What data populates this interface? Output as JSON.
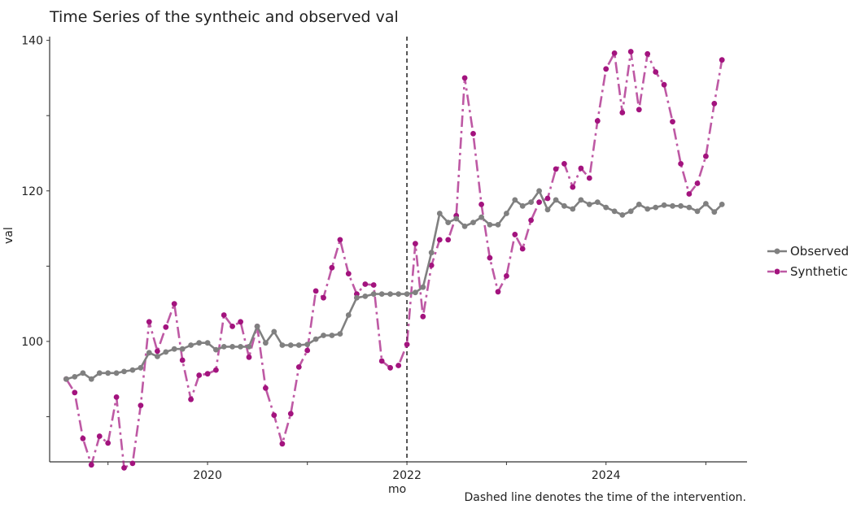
{
  "title": "Time Series of the syntheic and observed val",
  "caption": "Dashed line denotes the time of the intervention.",
  "chart_data": {
    "type": "line",
    "xlabel": "mo",
    "ylabel": "val",
    "xlim": [
      "2018-06-01",
      "2025-06-01"
    ],
    "ylim": [
      84,
      140.5
    ],
    "x_ticks": [
      {
        "label": "2020",
        "date": "2020-01-01"
      },
      {
        "label": "2022",
        "date": "2022-01-01"
      },
      {
        "label": "2024",
        "date": "2024-01-01"
      }
    ],
    "y_ticks": [
      {
        "label": "100",
        "value": 100
      },
      {
        "label": "120",
        "value": 120
      },
      {
        "label": "140",
        "value": 140
      }
    ],
    "intervention_date": "2022-01-01",
    "x_start": "2018-08-01",
    "dates_note": "monthly observations from 2018-08 to 2025-03",
    "series": [
      {
        "name": "Observed",
        "color": "#808080",
        "line_style": "solid",
        "values": [
          95.0,
          95.3,
          95.8,
          95.0,
          95.8,
          95.8,
          95.8,
          96.0,
          96.2,
          96.5,
          98.5,
          98.0,
          98.6,
          99.0,
          99.0,
          99.5,
          99.8,
          99.8,
          98.9,
          99.3,
          99.3,
          99.3,
          99.3,
          102.0,
          99.8,
          101.3,
          99.5,
          99.5,
          99.5,
          99.6,
          100.3,
          100.8,
          100.8,
          101.0,
          103.5,
          105.8,
          106.0,
          106.3,
          106.3,
          106.3,
          106.3,
          106.3,
          106.5,
          107.2,
          111.8,
          117.0,
          115.8,
          116.3,
          115.3,
          115.8,
          116.5,
          115.5,
          115.5,
          117.0,
          118.8,
          118.0,
          118.5,
          120.0,
          117.5,
          118.8,
          118.0,
          117.6,
          118.8,
          118.2,
          118.5,
          117.8,
          117.3,
          116.8,
          117.3,
          118.2,
          117.6,
          117.8,
          118.1,
          118.0,
          118.0,
          117.8,
          117.3,
          118.3,
          117.2,
          118.2
        ]
      },
      {
        "name": "Synthetic",
        "color": "#a3137e",
        "line_style": "dashdot",
        "values": [
          95.0,
          93.2,
          87.1,
          83.6,
          87.4,
          86.5,
          92.6,
          83.2,
          83.8,
          91.5,
          102.6,
          98.7,
          101.9,
          105.0,
          97.5,
          92.3,
          95.5,
          95.7,
          96.2,
          103.5,
          102.0,
          102.6,
          97.9,
          102.0,
          93.8,
          90.2,
          86.4,
          90.4,
          96.6,
          98.8,
          106.7,
          105.8,
          109.8,
          113.5,
          109.0,
          106.3,
          107.6,
          107.5,
          97.4,
          96.5,
          96.8,
          99.6,
          113.0,
          103.3,
          110.1,
          113.5,
          113.5,
          116.7,
          135.0,
          127.6,
          118.2,
          111.1,
          106.6,
          108.7,
          114.2,
          112.3,
          116.1,
          118.5,
          119.0,
          122.9,
          123.6,
          120.5,
          123.0,
          121.7,
          129.3,
          136.2,
          138.3,
          130.4,
          138.5,
          130.8,
          138.2,
          135.8,
          134.1,
          129.2,
          123.6,
          119.6,
          121.0,
          124.6,
          131.6,
          137.4
        ]
      }
    ],
    "grid": false,
    "legend_position": "right"
  }
}
